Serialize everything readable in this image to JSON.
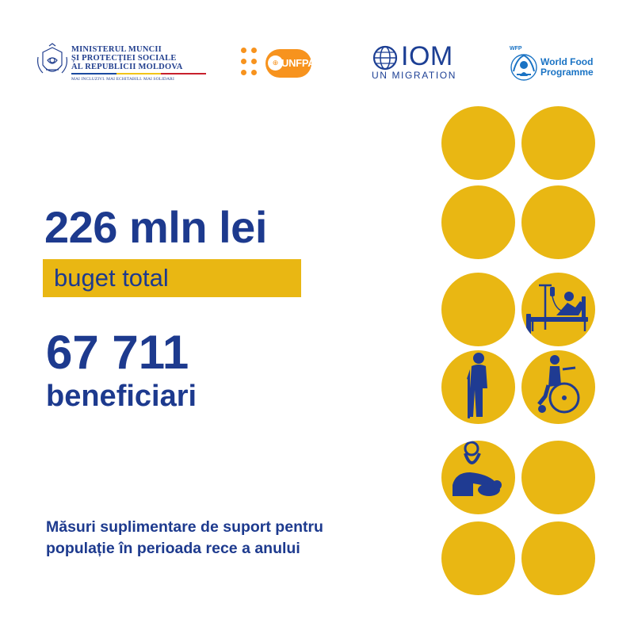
{
  "logos": {
    "ministry": {
      "lines": [
        "MINISTERUL MUNCII",
        "ȘI PROTECȚIEI SOCIALE",
        "AL REPUBLICII MOLDOVA"
      ],
      "motto": "MAI INCLUZIVI. MAI ECHITABILI. MAI SOLIDARI",
      "tricolor": [
        "#1b4aa0",
        "#f2c418",
        "#c8202c"
      ]
    },
    "unfpa": {
      "name": "UNFPA",
      "color": "#f7931e"
    },
    "iom": {
      "name": "IOM",
      "subtitle": "UN MIGRATION",
      "color": "#1c3f94"
    },
    "wfp": {
      "tag": "WFP",
      "name_line1": "World Food",
      "name_line2": "Programme",
      "color": "#1a73c4"
    }
  },
  "main": {
    "budget_amount": "226 mln lei",
    "budget_label": "buget total",
    "beneficiaries_count": "67 711",
    "beneficiaries_label": "beneficiari",
    "description_line1": "Măsuri suplimentare de suport pentru",
    "description_line2": "populație în perioada rece a anului"
  },
  "colors": {
    "primary_blue": "#1d3a8e",
    "accent_yellow": "#e9b713",
    "icon_blue": "#1f3b92"
  },
  "circles": [
    {
      "row": 1,
      "col": 1,
      "icon": null
    },
    {
      "row": 1,
      "col": 2,
      "icon": null
    },
    {
      "row": 2,
      "col": 1,
      "icon": null
    },
    {
      "row": 2,
      "col": 2,
      "icon": null
    },
    {
      "row": 3,
      "col": 1,
      "icon": null
    },
    {
      "row": 3,
      "col": 2,
      "icon": "hospital-bed-patient-icon"
    },
    {
      "row": 4,
      "col": 1,
      "icon": "elderly-person-cane-icon"
    },
    {
      "row": 4,
      "col": 2,
      "icon": "wheelchair-user-icon"
    },
    {
      "row": 5,
      "col": 1,
      "icon": "mother-baby-icon"
    },
    {
      "row": 5,
      "col": 2,
      "icon": null
    },
    {
      "row": 6,
      "col": 1,
      "icon": null
    },
    {
      "row": 6,
      "col": 2,
      "icon": null
    }
  ]
}
